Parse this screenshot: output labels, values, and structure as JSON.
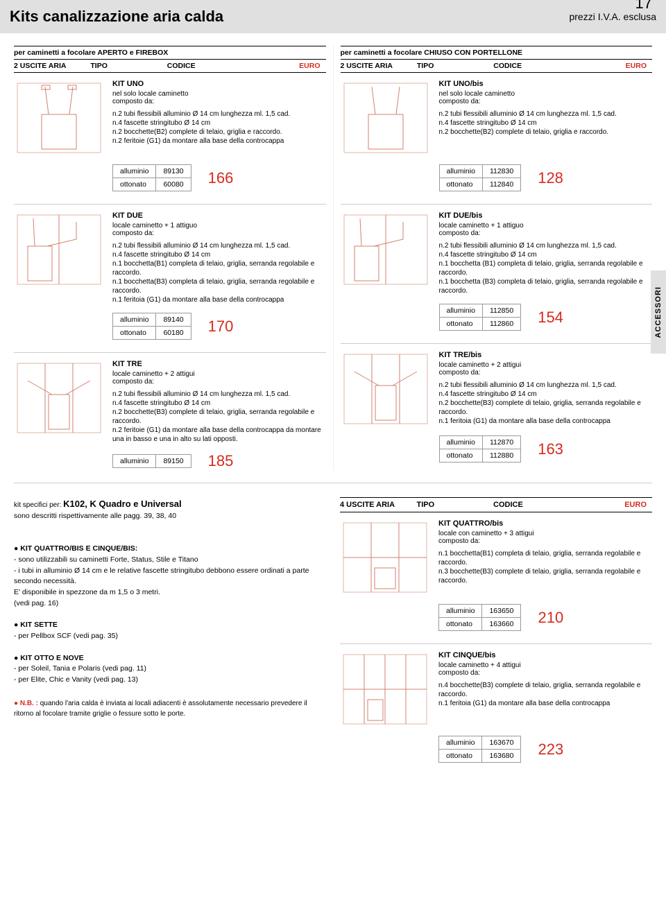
{
  "page_number": "17",
  "header": {
    "title": "Kits canalizzazione aria calda",
    "subtitle": "prezzi I.V.A. esclusa"
  },
  "accent_color": "#d52b1e",
  "side_tab": "ACCESSORI",
  "left": {
    "pre": "per caminetti a focolare APERTO e FIREBOX",
    "h": {
      "c1": "2 USCITE ARIA",
      "c2": "TIPO",
      "c3": "CODICE",
      "c4": "EURO"
    }
  },
  "right": {
    "pre": "per caminetti a focolare CHIUSO CON PORTELLONE",
    "h": {
      "c1": "2 USCITE ARIA",
      "c2": "TIPO",
      "c3": "CODICE",
      "c4": "EURO"
    }
  },
  "kits": {
    "uno": {
      "name": "KIT UNO",
      "sub": "nel solo locale caminetto\ncomposto da:",
      "items": "n.2 tubi flessibili alluminio Ø 14 cm lunghezza ml. 1,5 cad.\nn.4 fascette stringitubo Ø 14 cm\nn.2 bocchette(B2) complete di telaio, griglia e raccordo.\nn.2 feritoie (G1) da montare alla base della controcappa",
      "rows": [
        [
          "alluminio",
          "89130"
        ],
        [
          "ottonato",
          "60080"
        ]
      ],
      "price": "166"
    },
    "unobis": {
      "name": "KIT UNO/bis",
      "sub": "nel solo locale caminetto\ncomposto da:",
      "items": "n.2 tubi flessibili alluminio Ø 14 cm lunghezza ml. 1,5 cad.\nn.4 fascette stringitubo Ø 14 cm\nn.2 bocchette(B2) complete di telaio, griglia e raccordo.",
      "rows": [
        [
          "alluminio",
          "112830"
        ],
        [
          "ottonato",
          "112840"
        ]
      ],
      "price": "128"
    },
    "due": {
      "name": "KIT DUE",
      "sub": "locale caminetto + 1 attiguo\ncomposto da:",
      "items": "n.2 tubi flessibili alluminio Ø 14 cm lunghezza ml. 1,5 cad.\nn.4 fascette stringitubo Ø 14 cm\nn.1 bocchetta(B1) completa di telaio, griglia, serranda regolabile e raccordo.\nn.1 bocchetta(B3) completa di telaio, griglia, serranda regolabile e raccordo.\nn.1 feritoia (G1) da montare alla base della controcappa",
      "rows": [
        [
          "alluminio",
          "89140"
        ],
        [
          "ottonato",
          "60180"
        ]
      ],
      "price": "170"
    },
    "duebis": {
      "name": "KIT DUE/bis",
      "sub": "locale caminetto + 1 attiguo\ncomposto da:",
      "items": "n.2 tubi flessibili alluminio Ø 14 cm lunghezza ml. 1,5 cad.\nn.4 fascette stringitubo Ø 14 cm\nn.1 bocchetta (B1) completa di telaio, griglia, serranda regolabile e raccordo.\nn.1 bocchetta (B3) completa di telaio, griglia, serranda regolabile e raccordo.",
      "rows": [
        [
          "alluminio",
          "112850"
        ],
        [
          "ottonato",
          "112860"
        ]
      ],
      "price": "154"
    },
    "tre": {
      "name": "KIT TRE",
      "sub": "locale caminetto + 2 attigui\ncomposto da:",
      "items": "n.2 tubi flessibili alluminio Ø 14 cm lunghezza ml. 1,5 cad.\nn.4 fascette stringitubo Ø 14 cm\nn.2 bocchette(B3) complete di telaio, griglia, serranda regolabile e raccordo.\nn.2 feritoie (G1) da montare alla base della controcappa da montare una in basso e una in alto su lati opposti.",
      "rows": [
        [
          "alluminio",
          "89150"
        ]
      ],
      "price": "185"
    },
    "trebis": {
      "name": "KIT TRE/bis",
      "sub": "locale caminetto + 2 attigui\ncomposto da:",
      "items": "n.2 tubi flessibili alluminio Ø 14 cm lunghezza ml. 1,5 cad.\nn.4 fascette stringitubo Ø 14 cm\nn.2 bocchette(B3) complete di telaio, griglia, serranda regolabile e raccordo.\nn.1 feritoia (G1) da montare alla base della controcappa",
      "rows": [
        [
          "alluminio",
          "112870"
        ],
        [
          "ottonato",
          "112880"
        ]
      ],
      "price": "163"
    }
  },
  "bottom": {
    "specific": "kit specifici per: K102, K Quadro e Universal",
    "specific_sub": "sono descritti rispettivamente alle pagg. 39, 38, 40",
    "quattro_title": "KIT QUATTRO/BIS E CINQUE/BIS:",
    "quattro_body": "- sono utilizzabili su caminetti Forte, Status, Stile e Titano\n- i tubi in alluminio Ø 14 cm e le relative fascette stringitubo debbono essere ordinati a parte secondo necessità.\nE' disponibile in spezzone da m 1,5 o 3 metri.\n(vedi pag. 16)",
    "sette_title": "KIT SETTE",
    "sette_body": "- per Pellbox SCF (vedi pag. 35)",
    "otto_title": "KIT OTTO E NOVE",
    "otto_body": "- per Soleil, Tania e Polaris (vedi pag. 11)\n- per Elite, Chic e Vanity (vedi pag. 13)",
    "nb_label": "N.B. :",
    "nb_text": "quando l'aria calda è inviata ai locali adiacenti è assolutamente necessario prevedere il ritorno al focolare tramite griglie o fessure sotto le porte.",
    "right_hdr": {
      "c1": "4 USCITE ARIA",
      "c2": "TIPO",
      "c3": "CODICE",
      "c4": "EURO"
    },
    "quattrobis": {
      "name": "KIT QUATTRO/bis",
      "sub": "locale con caminetto + 3 attigui\ncomposto da:",
      "items": "n.1 bocchetta(B1) completa di telaio, griglia, serranda regolabile e raccordo.\nn.3 bocchette(B3) complete di telaio, griglia, serranda regolabile e raccordo.",
      "rows": [
        [
          "alluminio",
          "163650"
        ],
        [
          "ottonato",
          "163660"
        ]
      ],
      "price": "210"
    },
    "cinquebis": {
      "name": "KIT CINQUE/bis",
      "sub": "locale caminetto + 4 attigui\ncomposto da:",
      "items": "n.4 bocchette(B3) complete di telaio, griglia, serranda regolabile e raccordo.\nn.1 feritoia (G1) da montare alla base della controcappa",
      "rows": [
        [
          "alluminio",
          "163670"
        ],
        [
          "ottonato",
          "163680"
        ]
      ],
      "price": "223"
    }
  }
}
